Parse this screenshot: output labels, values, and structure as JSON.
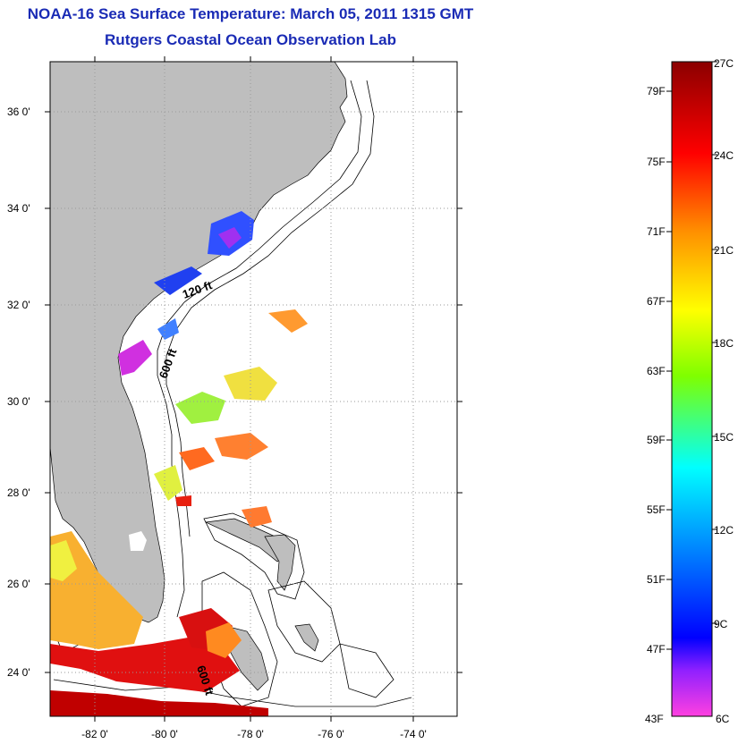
{
  "title": "NOAA-16 Sea Surface Temperature:  March 05, 2011 1315 GMT",
  "subtitle": "Rutgers Coastal Ocean Observation Lab",
  "map": {
    "lat_labels": [
      "36 0'",
      "34 0'",
      "32 0'",
      "30 0'",
      "28 0'",
      "26 0'",
      "24 0'"
    ],
    "lon_labels": [
      "-82 0'",
      "-80 0'",
      "-78 0'",
      "-76 0'",
      "-74 0'"
    ],
    "contour_labels": [
      "120 ft",
      "600 ft",
      "600 ft"
    ]
  },
  "colorbar": {
    "fahrenheit_labels": [
      "79F",
      "75F",
      "71F",
      "67F",
      "63F",
      "59F",
      "55F",
      "51F",
      "47F",
      "43F"
    ],
    "celsius_labels": [
      "27C",
      "24C",
      "21C",
      "18C",
      "15C",
      "12C",
      "9C",
      "6C"
    ],
    "colors": [
      "#8b0000",
      "#ff0000",
      "#ff7f00",
      "#ffff00",
      "#7fff00",
      "#00ffff",
      "#0080ff",
      "#0000ff",
      "#8000ff",
      "#ff00ff"
    ]
  },
  "colors": {
    "land": "#bebebe",
    "title": "#1a2bb5",
    "ocean": "#ffffff"
  }
}
